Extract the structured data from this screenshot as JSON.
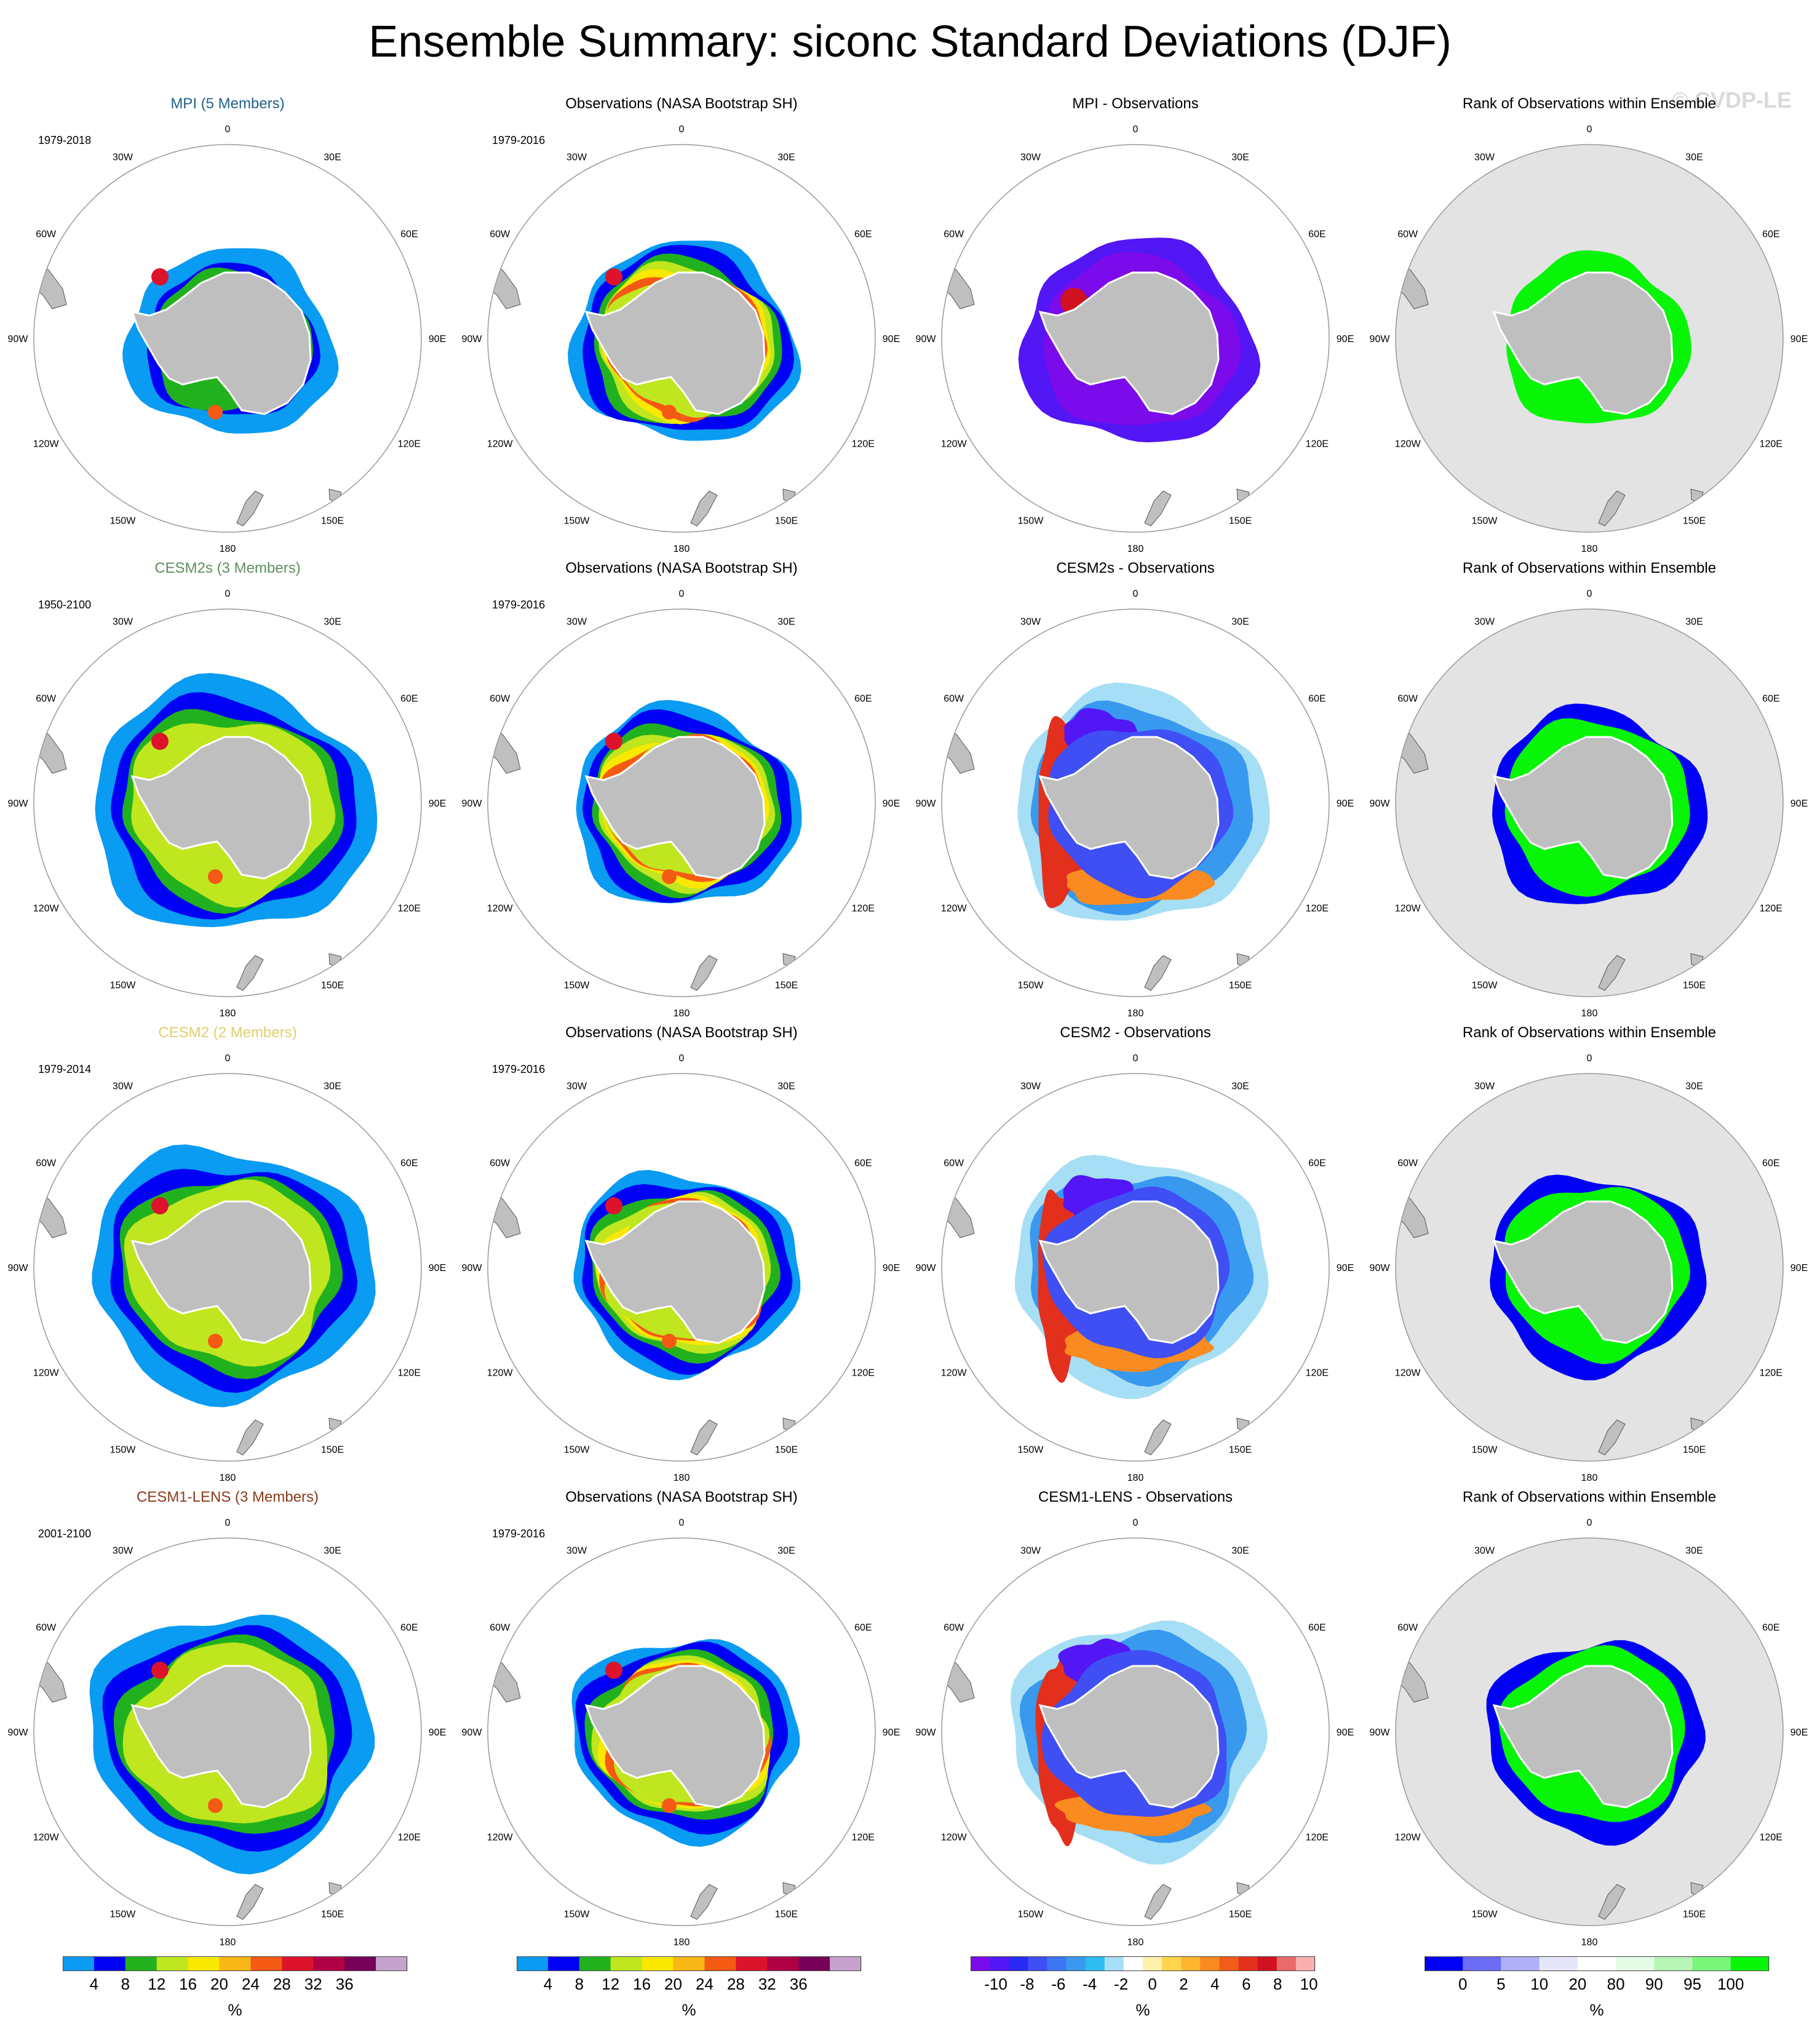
{
  "title": "Ensemble Summary: siconc Standard Deviations (DJF)",
  "watermark": "© CVDP-LE",
  "lon_labels": [
    "0",
    "30E",
    "60E",
    "90E",
    "120E",
    "150E",
    "180",
    "150W",
    "120W",
    "90W",
    "60W",
    "30W"
  ],
  "colors": {
    "land": "#bfbfbf",
    "rank_background": "#e3e3e3",
    "std_palette": [
      "#0a9bf2",
      "#0000f5",
      "#22b11e",
      "#bfe61f",
      "#fae800",
      "#f8b714",
      "#f55a14",
      "#dd132b",
      "#b00044",
      "#760058",
      "#c5a2cc"
    ],
    "diff_palette": [
      "#7b0bea",
      "#5316f5",
      "#2a2af5",
      "#3f4ff4",
      "#3c76f1",
      "#3899ef",
      "#2ebcf1",
      "#a6dff5",
      "#ffffff",
      "#fff1ac",
      "#ffd54d",
      "#ffb52e",
      "#f98b20",
      "#f05d17",
      "#e3301d",
      "#cf1120",
      "#e86a6a",
      "#fbb0b0"
    ],
    "rank_palette": [
      "#0000f5",
      "#6c6cf5",
      "#b0b0f7",
      "#e6e6fb",
      "#ffffff",
      "#e6fbe6",
      "#b6f5b6",
      "#7af57a",
      "#08f508"
    ]
  },
  "rows": [
    {
      "model": "MPI (5 Members)",
      "model_color": "#21618c",
      "model_years": "1979-2018",
      "obs_title": "Observations (NASA Bootstrap SH)",
      "obs_years": "1979-2016",
      "diff_title": "MPI - Observations",
      "rank_title": "Rank of Observations within Ensemble"
    },
    {
      "model": "CESM2s (3 Members)",
      "model_color": "#5e8f5e",
      "model_years": "1950-2100",
      "obs_title": "Observations (NASA Bootstrap SH)",
      "obs_years": "1979-2016",
      "diff_title": "CESM2s - Observations",
      "rank_title": "Rank of Observations within Ensemble"
    },
    {
      "model": "CESM2 (2 Members)",
      "model_color": "#e0cf6a",
      "model_years": "1979-2014",
      "obs_title": "Observations (NASA Bootstrap SH)",
      "obs_years": "1979-2016",
      "diff_title": "CESM2 - Observations",
      "rank_title": "Rank of Observations within Ensemble"
    },
    {
      "model": "CESM1-LENS (3 Members)",
      "model_color": "#8b3a1a",
      "model_years": "2001-2100",
      "obs_title": "Observations (NASA Bootstrap SH)",
      "obs_years": "1979-2016",
      "diff_title": "CESM1-LENS - Observations",
      "rank_title": "Rank of Observations within Ensemble"
    }
  ],
  "colorbars": [
    {
      "kind": "std",
      "unit": "%",
      "labels": [
        "4",
        "8",
        "12",
        "16",
        "20",
        "24",
        "28",
        "32",
        "36"
      ]
    },
    {
      "kind": "std",
      "unit": "%",
      "labels": [
        "4",
        "8",
        "12",
        "16",
        "20",
        "24",
        "28",
        "32",
        "36"
      ]
    },
    {
      "kind": "diff",
      "unit": "%",
      "labels": [
        "-10",
        "-8",
        "-6",
        "-4",
        "-2",
        "0",
        "2",
        "4",
        "6",
        "8",
        "10"
      ]
    },
    {
      "kind": "rank",
      "unit": "%",
      "labels": [
        "0",
        "5",
        "10",
        "20",
        "80",
        "90",
        "95",
        "100"
      ]
    }
  ]
}
